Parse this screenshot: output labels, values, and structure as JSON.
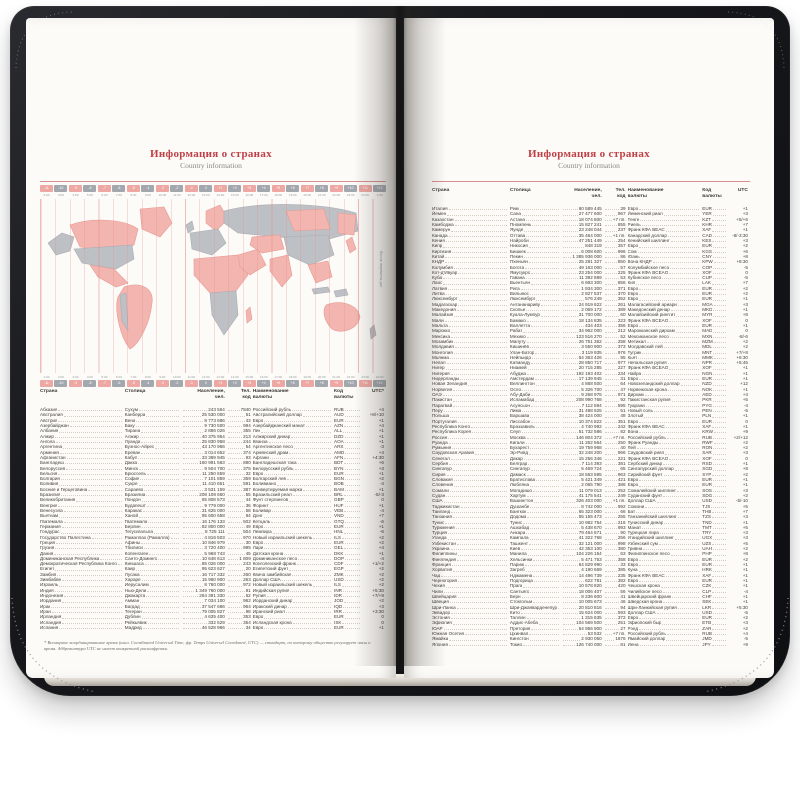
{
  "titles": {
    "ru": "Информация о странах",
    "en": "Country information"
  },
  "colors": {
    "accent_red": "#bf3f46",
    "rule_pink": "#d98e91",
    "map_pink": "#f3b5af",
    "map_gray": "#bdc0c5",
    "chip_pink": "#eda8a3",
    "chip_gray": "#a3a8af",
    "cover_black": "#17181b",
    "page_cream": "#fcfbf8",
    "text_dark": "#44403b",
    "leader_gray": "#d4cdc2"
  },
  "map": {
    "dateline_label": "Линия перемены дат"
  },
  "timezone_bar": {
    "offsets": [
      "-11",
      "-10",
      "-9",
      "-8",
      "-7",
      "-6",
      "-5",
      "-4",
      "-3",
      "-2",
      "-1",
      "0",
      "+1",
      "+2",
      "+3",
      "+4",
      "+5",
      "+6",
      "+7",
      "+8",
      "+9",
      "+10",
      "+11",
      "+12"
    ],
    "times_top": [
      "2:00",
      "3:00",
      "4:00",
      "5:00",
      "6:00",
      "7:00",
      "8:00",
      "9:00",
      "10:00",
      "11:00",
      "12:00",
      "13:00",
      "14:00",
      "15:00",
      "16:00",
      "17:00",
      "18:00",
      "19:00",
      "20:00",
      "21:00",
      "22:00",
      "23:00",
      "24:00",
      "1:00"
    ],
    "times_bottom": [
      "1:00",
      "2:00",
      "3:00",
      "4:00",
      "5:00",
      "6:00",
      "7:00",
      "8:00",
      "9:00",
      "10:00",
      "11:00",
      "12:00",
      "13:00",
      "14:00",
      "15:00",
      "16:00",
      "17:00",
      "18:00",
      "19:00",
      "20:00",
      "21:00",
      "22:00",
      "23:00",
      "24:00"
    ]
  },
  "table": {
    "headers": [
      "Страна",
      "Столица",
      "Население,\nчел.",
      "Тел.\nкод",
      "Наименование\nвалюты",
      "Код\nвалюты"
    ],
    "utc_header_left": "UTC*",
    "utc_header_right": "UTC"
  },
  "left_rows": [
    [
      "Абхазия",
      "Сухум",
      "243 564",
      "7840",
      "Российский рубль",
      "RUB",
      "+4"
    ],
    [
      "Австралия",
      "Канберра",
      "25 530 000",
      "61",
      "Австралийский доллар",
      "AUD",
      "+8/+10"
    ],
    [
      "Австрия",
      "Вена",
      "8 773 686",
      "43",
      "Евро",
      "EUR",
      "+1"
    ],
    [
      "Азербайджан",
      "Баку",
      "9 730 500",
      "994",
      "Азербайджанский манат",
      "AZN",
      "+4"
    ],
    [
      "Албания",
      "Тирана",
      "2 886 026",
      "355",
      "Лек",
      "ALL",
      "+1"
    ],
    [
      "Алжир",
      "Алжир",
      "40 375 954",
      "213",
      "Алжирский динар",
      "DZD",
      "+1"
    ],
    [
      "Ангола",
      "Луанда",
      "25 830 958",
      "244",
      "Кванза",
      "AOA",
      "+1"
    ],
    [
      "Аргентина",
      "Буэнос-Айрес",
      "43 170 966",
      "54",
      "Аргентинское песо",
      "ARS",
      "-3"
    ],
    [
      "Армения",
      "Ереван",
      "3 014 652",
      "374",
      "Армянский драм",
      "AMD",
      "+4"
    ],
    [
      "Афганистан",
      "Кабул",
      "33 369 945",
      "93",
      "Афгани",
      "AFN",
      "+4:30"
    ],
    [
      "Бангладеш",
      "Дакка",
      "160 991 563",
      "880",
      "Бангладешская така",
      "BDT",
      "+6"
    ],
    [
      "Белоруссия",
      "Минск",
      "9 504 700",
      "375",
      "Белорусский рубль",
      "BYN",
      "+3"
    ],
    [
      "Бельгия",
      "Брюссель",
      "11 250 659",
      "32",
      "Евро",
      "EUR",
      "+1"
    ],
    [
      "Болгария",
      "София",
      "7 101 859",
      "359",
      "Болгарский лев",
      "BGN",
      "+2"
    ],
    [
      "Боливия",
      "Сукре",
      "11 410 651",
      "591",
      "Боливиано",
      "BOB",
      "-4"
    ],
    [
      "Босния и Герцеговина",
      "Сараево",
      "3 531 159",
      "387",
      "Конвертируемая марка",
      "BAM",
      "+1"
    ],
    [
      "Бразилия",
      "Бразилиа",
      "208 108 660",
      "55",
      "Бразильский реал",
      "BRL",
      "-5/-3"
    ],
    [
      "Великобритания",
      "Лондон",
      "65 808 573",
      "44",
      "Фунт стерлингов",
      "GBP",
      "0"
    ],
    [
      "Венгрия",
      "Будапешт",
      "9 779 000",
      "36",
      "Форинт",
      "HUF",
      "+1"
    ],
    [
      "Венесуэла",
      "Каракас",
      "31 625 000",
      "58",
      "Боливар",
      "VEB",
      "-4"
    ],
    [
      "Вьетнам",
      "Ханой",
      "95 600 658",
      "84",
      "Донг",
      "VND",
      "+7"
    ],
    [
      "Гватемала",
      "Гватемала",
      "16 176 133",
      "502",
      "Кетцаль",
      "GTQ",
      "-6"
    ],
    [
      "Германия",
      "Берлин",
      "82 800 000",
      "49",
      "Евро",
      "EUR",
      "+1"
    ],
    [
      "Гондурас",
      "Тегусигальпа",
      "8 725 111",
      "504",
      "Лемпира",
      "HNL",
      "-6"
    ],
    [
      "Государство Палестина",
      "Рамаллах (Рамалла)",
      "4 816 503",
      "970",
      "Новый израильский шекель",
      "ILS",
      "+2"
    ],
    [
      "Греция",
      "Афины",
      "10 846 979",
      "30",
      "Евро",
      "EUR",
      "+2"
    ],
    [
      "Грузия",
      "Тбилиси",
      "3 720 400",
      "995",
      "Лари",
      "GEL",
      "+4"
    ],
    [
      "Дания",
      "Копенгаген",
      "5 968 743",
      "45",
      "Датская крона",
      "DKK",
      "+1"
    ],
    [
      "Доминиканская Республика",
      "Санто-Доминго",
      "10 648 613",
      "1 809",
      "Доминиканское песо",
      "DOP",
      "-4"
    ],
    [
      "Демократическая Республика Конго",
      "Киншаса",
      "85 026 000",
      "243",
      "Конголезский франк",
      "CDF",
      "+1/+2"
    ],
    [
      "Египет",
      "Каир",
      "95 623 627",
      "20",
      "Египетский фунт",
      "EGP",
      "+2"
    ],
    [
      "Замбия",
      "Лусака",
      "16 717 332",
      "260",
      "Квача замбийская",
      "ZMK",
      "+2"
    ],
    [
      "Зимбабве",
      "Хараре",
      "15 960 900",
      "263",
      "Доллар США",
      "USD",
      "+2"
    ],
    [
      "Израиль",
      "Иерусалим",
      "8 760 000",
      "972",
      "Новый израильский шекель",
      "ILS",
      "+2"
    ],
    [
      "Индия",
      "Нью-Дели",
      "1 349 760 000",
      "91",
      "Индийская рупия",
      "INR",
      "+5:30"
    ],
    [
      "Индонезия",
      "Джакарта",
      "264 391 330",
      "62",
      "Рупия",
      "IDR",
      "+7/+9"
    ],
    [
      "Иордания",
      "Амман",
      "7 034 100",
      "962",
      "Иорданский динар",
      "JOD",
      "+2"
    ],
    [
      "Ирак",
      "Багдад",
      "37 547 686",
      "964",
      "Иракский динар",
      "IQD",
      "+3"
    ],
    [
      "Иран",
      "Тегеран",
      "79 005 827",
      "98",
      "Иранский риал",
      "IRR",
      "+3:30"
    ],
    [
      "Ирландия",
      "Дублин",
      "4 635 400",
      "353",
      "Евро",
      "EUR",
      "0"
    ],
    [
      "Исландия",
      "Рейкьявик",
      "332 529",
      "354",
      "Исландская крона",
      "ISK",
      "0"
    ],
    [
      "Испания",
      "Мадрид",
      "46 528 966",
      "34",
      "Евро",
      "EUR",
      "+1"
    ]
  ],
  "right_rows": [
    [
      "Италия",
      "Рим",
      "60 589 445",
      "39",
      "Евро",
      "EUR",
      "+1"
    ],
    [
      "Йемен",
      "Сана",
      "27 477 600",
      "967",
      "Йеменский риал",
      "YER",
      "+3"
    ],
    [
      "Казахстан",
      "Астана",
      "18 074 800",
      "+7 пп.",
      "Тенге",
      "KZT",
      "+5/+6"
    ],
    [
      "Камбоджа",
      "Пномпень",
      "15 827 241",
      "855",
      "Риель",
      "KHR",
      "+7"
    ],
    [
      "Камерун",
      "Яунде",
      "23 248 044",
      "237",
      "Франк КФА BEAC",
      "XAF",
      "+1"
    ],
    [
      "Канада",
      "Оттава",
      "35 464 000",
      "+1 пп.",
      "Канадский доллар",
      "CAD",
      "-8/-3:30"
    ],
    [
      "Кения",
      "Найроби",
      "47 251 449",
      "254",
      "Кенийский шиллинг",
      "KES",
      "+3"
    ],
    [
      "Кипр",
      "Никосия",
      "848 319",
      "357",
      "Евро",
      "EUR",
      "+2"
    ],
    [
      "Киргизия",
      "Бишкек",
      "6 008 600",
      "996",
      "Сом",
      "KGS",
      "+6"
    ],
    [
      "Китай",
      "Пекин",
      "1 385 936 000",
      "86",
      "Юань",
      "CNY",
      "+8"
    ],
    [
      "КНДР",
      "Пхеньян",
      "25 281 327",
      "850",
      "Вона КНДР",
      "KPW",
      "+8:30"
    ],
    [
      "Колумбия",
      "Богота",
      "49 163 000",
      "57",
      "Колумбийское песо",
      "COP",
      "-5"
    ],
    [
      "Кот-д'Ивуар",
      "Ямусукро",
      "23 254 000",
      "225",
      "Франк КФА BCEAO",
      "XOF",
      "0"
    ],
    [
      "Куба",
      "Гавана",
      "11 392 889",
      "53",
      "Кубинское песо",
      "CUP",
      "-5"
    ],
    [
      "Лаос",
      "Вьентьян",
      "6 693 300",
      "856",
      "Кип",
      "LAK",
      "+7"
    ],
    [
      "Латвия",
      "Рига",
      "1 934 300",
      "371",
      "Евро",
      "EUR",
      "+2"
    ],
    [
      "Литва",
      "Вильнюс",
      "2 827 537",
      "370",
      "Евро",
      "EUR",
      "+2"
    ],
    [
      "Люксембург",
      "Люксембург",
      "576 249",
      "352",
      "Евро",
      "EUR",
      "+1"
    ],
    [
      "Мадагаскар",
      "Антананариву",
      "24 919 622",
      "261",
      "Малагасийский ариари",
      "MGA",
      "+3"
    ],
    [
      "Македония",
      "Скопье",
      "2 069 172",
      "389",
      "Македонский денар",
      "MKD",
      "+1"
    ],
    [
      "Малайзия",
      "Куала-Лумпур",
      "31 700 000",
      "60",
      "Малайзийский ринггит",
      "MYR",
      "+8"
    ],
    [
      "Мали",
      "Бамако",
      "18 134 835",
      "223",
      "Франк КФА BCEAO",
      "XOF",
      "0"
    ],
    [
      "Мальта",
      "Валлетта",
      "434 403",
      "356",
      "Евро",
      "EUR",
      "+1"
    ],
    [
      "Марокко",
      "Рабат",
      "34 962 000",
      "212",
      "Марокканский дирхам",
      "MAD",
      "0"
    ],
    [
      "Мексика",
      "Мехико",
      "123 516 270",
      "52",
      "Мексиканское песо",
      "MXN",
      "-8/-6"
    ],
    [
      "Мозамбик",
      "Мапуту",
      "26 751 362",
      "258",
      "Метикал",
      "MZM",
      "+2"
    ],
    [
      "Молдавия",
      "Кишинёв",
      "3 550 900",
      "373",
      "Молдавский лей",
      "MDL",
      "+2"
    ],
    [
      "Монголия",
      "Улан-Батор",
      "3 119 935",
      "976",
      "Тугрик",
      "MNT",
      "+7/+8"
    ],
    [
      "Мьянма",
      "Нейпьидо",
      "54 363 426",
      "95",
      "Кьят",
      "MMK",
      "+6:30"
    ],
    [
      "Непал",
      "Катманду",
      "28 850 717",
      "977",
      "Непальская рупия",
      "NPR",
      "+5:45"
    ],
    [
      "Нигер",
      "Ниамей",
      "20 715 285",
      "227",
      "Франк КФА BCEAO",
      "XOF",
      "+1"
    ],
    [
      "Нигерия",
      "Абуджа",
      "192 193 402",
      "234",
      "Найра",
      "NGN",
      "+1"
    ],
    [
      "Нидерланды",
      "Амстердам",
      "17 139 945",
      "31",
      "Евро",
      "EUR",
      "+1"
    ],
    [
      "Новая Зеландия",
      "Веллингтон",
      "4 868 500",
      "64",
      "Новозеландский доллар",
      "NZD",
      "+12"
    ],
    [
      "Норвегия",
      "Осло",
      "5 326 700",
      "47",
      "Норвежская крона",
      "NOK",
      "+1"
    ],
    [
      "ОАЭ",
      "Абу-Даби",
      "9 268 975",
      "971",
      "Дирхам",
      "AED",
      "+4"
    ],
    [
      "Пакистан",
      "Исламабад",
      "208 990 768",
      "92",
      "Пакистанская рупия",
      "PKR",
      "+5"
    ],
    [
      "Парагвай",
      "Асунсьон",
      "7 112 594",
      "595",
      "Гуарани",
      "PYG",
      "-4"
    ],
    [
      "Перу",
      "Лима",
      "31 488 625",
      "51",
      "Новый соль",
      "PEN",
      "-5"
    ],
    [
      "Польша",
      "Варшава",
      "38 424 000",
      "48",
      "Злотый",
      "PLN",
      "+1"
    ],
    [
      "Португалия",
      "Лиссабон",
      "10 374 822",
      "351",
      "Евро",
      "EUR",
      "0"
    ],
    [
      "Республика Конго",
      "Браззавиль",
      "4 740 992",
      "242",
      "Франк КФА BEAC",
      "XAF",
      "+1"
    ],
    [
      "Республика Корея",
      "Сеул",
      "51 732 586",
      "82",
      "Вона",
      "KRW",
      "+9"
    ],
    [
      "Россия",
      "Москва",
      "146 804 372",
      "+7 пп.",
      "Российский рубль",
      "RUB",
      "+2/+12"
    ],
    [
      "Руанда",
      "Кигали",
      "11 262 564",
      "250",
      "Франк Руанды",
      "RWF",
      "+2"
    ],
    [
      "Румыния",
      "Бухарест",
      "19 759 968",
      "40",
      "Лей",
      "RON",
      "+2"
    ],
    [
      "Саудовская Аравия",
      "Эр-Рияд",
      "32 248 200",
      "966",
      "Саудовский риял",
      "SAR",
      "+3"
    ],
    [
      "Сенегал",
      "Дакар",
      "15 256 346",
      "221",
      "Франк КФА BCEAO",
      "XOF",
      "0"
    ],
    [
      "Сербия",
      "Белград",
      "7 114 393",
      "381",
      "Сербский динар",
      "RSD",
      "+1"
    ],
    [
      "Сингапур",
      "Сингапур",
      "5 469 724",
      "65",
      "Сингапурский доллар",
      "SGD",
      "+8"
    ],
    [
      "Сирия",
      "Дамаск",
      "18 563 595",
      "963",
      "Сирийский фунт",
      "SYP",
      "+2"
    ],
    [
      "Словакия",
      "Братислава",
      "5 421 349",
      "421",
      "Евро",
      "EUR",
      "+1"
    ],
    [
      "Словения",
      "Любляна",
      "2 065 790",
      "386",
      "Евро",
      "EUR",
      "+1"
    ],
    [
      "Сомали",
      "Могадишо",
      "11 079 013",
      "252",
      "Сомалийский шиллинг",
      "SOS",
      "+3"
    ],
    [
      "Судан",
      "Хартум",
      "41 175 541",
      "249",
      "Суданский фунт",
      "SDG",
      "+2"
    ],
    [
      "США",
      "Вашингтон",
      "326 403 000",
      "+1 пп.",
      "Доллар США",
      "USD",
      "-5/-10"
    ],
    [
      "Таджикистан",
      "Душанбе",
      "8 742 000",
      "992",
      "Сомони",
      "TJS",
      "+5"
    ],
    [
      "Таиланд",
      "Бангкок",
      "65 323 000",
      "66",
      "Бат",
      "THB",
      "+7"
    ],
    [
      "Танзания",
      "Додома",
      "55 155 473",
      "255",
      "Танзанийский шиллинг",
      "TZS",
      "+3"
    ],
    [
      "Тунис",
      "Тунис",
      "10 982 754",
      "216",
      "Тунисский динар",
      "TND",
      "+1"
    ],
    [
      "Туркмения",
      "Ашхабад",
      "5 438 670",
      "993",
      "Манат",
      "TMT",
      "+5"
    ],
    [
      "Турция",
      "Анкара",
      "79 464 671",
      "90",
      "Турецкая лира",
      "TRY",
      "+3"
    ],
    [
      "Уганда",
      "Кампала",
      "41 322 768",
      "256",
      "Угандийский шиллинг",
      "UGX",
      "+3"
    ],
    [
      "Узбекистан",
      "Ташкент",
      "32 121 000",
      "998",
      "Узбекский сум",
      "UZS",
      "+5"
    ],
    [
      "Украина",
      "Киев",
      "42 353 100",
      "380",
      "Гривна",
      "UAH",
      "+2"
    ],
    [
      "Филиппины",
      "Манила",
      "104 226 154",
      "63",
      "Филиппинское песо",
      "PHP",
      "+8"
    ],
    [
      "Финляндия",
      "Хельсинки",
      "5 471 753",
      "358",
      "Евро",
      "EUR",
      "+2"
    ],
    [
      "Франция",
      "Париж",
      "64 829 990",
      "33",
      "Евро",
      "EUR",
      "+1"
    ],
    [
      "Хорватия",
      "Загреб",
      "4 190 669",
      "385",
      "Куна",
      "HRK",
      "+1"
    ],
    [
      "Чад",
      "Нджамена",
      "14 496 739",
      "235",
      "Франк КФА BEAC",
      "XAF",
      "+1"
    ],
    [
      "Черногория",
      "Подгорица",
      "622 781",
      "382",
      "Евро",
      "EUR",
      "+1"
    ],
    [
      "Чехия",
      "Прага",
      "10 578 820",
      "420",
      "Чешская крона",
      "CZK",
      "+1"
    ],
    [
      "Чили",
      "Сантьяго",
      "18 006 407",
      "56",
      "Чилийское песо",
      "CLP",
      "-4"
    ],
    [
      "Швейцария",
      "Берн",
      "8 236 600",
      "41",
      "Швейцарский франк",
      "CHF",
      "+1"
    ],
    [
      "Швеция",
      "Стокгольм",
      "10 005 673",
      "46",
      "Шведская крона",
      "SEK",
      "+1"
    ],
    [
      "Шри-Ланка",
      "Шри-Джаяварденепура-Котте",
      "20 810 816",
      "94",
      "Шри-Ланкийская рупия",
      "LKR",
      "+5:30"
    ],
    [
      "Эквадор",
      "Кито",
      "15 624 000",
      "593",
      "Доллар США",
      "USD",
      "-5"
    ],
    [
      "Эстония",
      "Таллин",
      "1 315 635",
      "372",
      "Евро",
      "EUR",
      "+2"
    ],
    [
      "Эфиопия",
      "Аддис-Абеба",
      "104 569 500",
      "251",
      "Эфиопский быр",
      "ETB",
      "+3"
    ],
    [
      "ЮАР",
      "Претория",
      "54 956 900",
      "27",
      "Рэнд",
      "ZAR",
      "+2"
    ],
    [
      "Южная Осетия",
      "Цхинвал",
      "53 532",
      "+7 пп.",
      "Российский рубль",
      "RUB",
      "+4"
    ],
    [
      "Ямайка",
      "Кингстон",
      "2 930 050",
      "1876",
      "Ямайский доллар",
      "JMD",
      "-5"
    ],
    [
      "Япония",
      "Токио",
      "126 740 000",
      "81",
      "Иена",
      "JPY",
      "+9"
    ]
  ],
  "footnote": "* Всемирное координированное время (англ. Coordinated Universal Time, фр. Temps Universel Coordonné, UTC) — стандарт, по которому общество регулирует часы и время. Аббревиатура UTC не имеет конкретной расшифровки."
}
